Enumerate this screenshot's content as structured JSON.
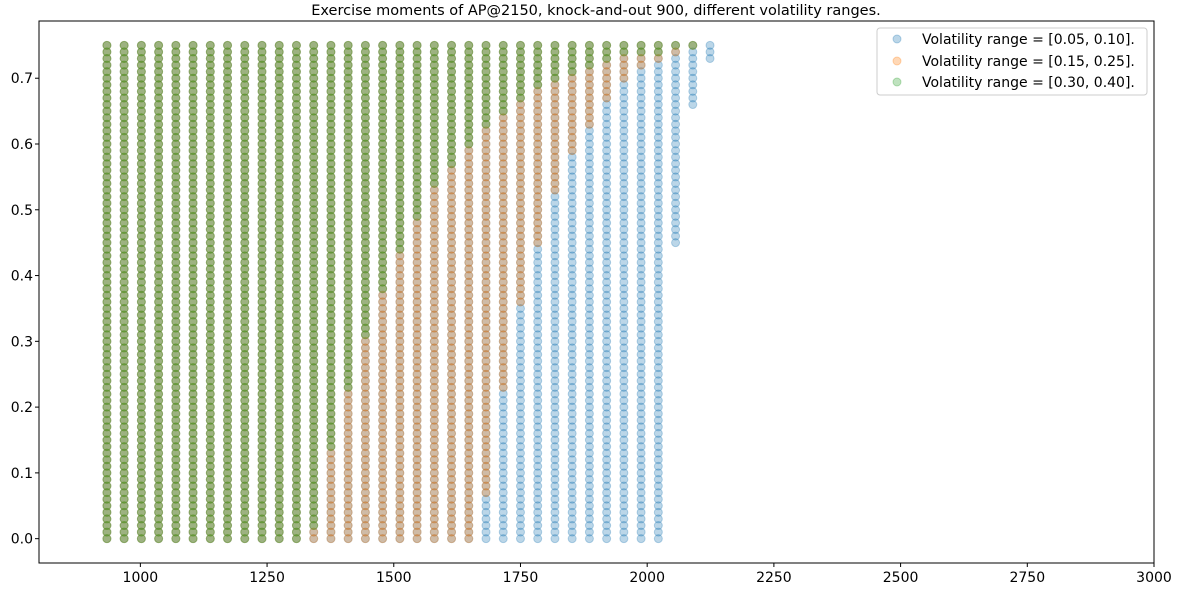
{
  "chart_data": {
    "type": "scatter",
    "title": "Exercise moments of AP@2150, knock-and-out 900, different volatility ranges.",
    "xlabel": "",
    "ylabel": "",
    "xlim": [
      800,
      3000
    ],
    "ylim": [
      -0.037,
      0.787
    ],
    "xticks": [
      1000,
      1250,
      1500,
      1750,
      2000,
      2250,
      2500,
      2750,
      3000
    ],
    "xtick_labels": [
      "1000",
      "1250",
      "1500",
      "1750",
      "2000",
      "2250",
      "2500",
      "2750",
      "3000"
    ],
    "yticks": [
      0.0,
      0.1,
      0.2,
      0.3,
      0.4,
      0.5,
      0.6,
      0.7
    ],
    "ytick_labels": [
      "0.0",
      "0.1",
      "0.2",
      "0.3",
      "0.4",
      "0.5",
      "0.6",
      "0.7"
    ],
    "grid": false,
    "legend_position": "top-right",
    "t_min": 0.0,
    "t_max": 0.75,
    "t_step": 0.01,
    "x_positions": [
      934,
      968,
      1002,
      1036,
      1070,
      1104,
      1138,
      1172,
      1206,
      1240,
      1274,
      1308,
      1342,
      1376,
      1410,
      1444,
      1478,
      1512,
      1546,
      1580,
      1614,
      1648,
      1682,
      1716,
      1750,
      1784,
      1818,
      1852,
      1886,
      1920,
      1954,
      1988,
      2022,
      2056,
      2090,
      2124
    ],
    "series": [
      {
        "name": "Volatility range = [0.05, 0.10].",
        "color": "#1f77b4",
        "opacity": 0.3,
        "columns": [
          {
            "x": 934,
            "from": 0.0,
            "to": 0.75
          },
          {
            "x": 968,
            "from": 0.0,
            "to": 0.75
          },
          {
            "x": 1002,
            "from": 0.0,
            "to": 0.75
          },
          {
            "x": 1036,
            "from": 0.0,
            "to": 0.75
          },
          {
            "x": 1070,
            "from": 0.0,
            "to": 0.75
          },
          {
            "x": 1104,
            "from": 0.0,
            "to": 0.75
          },
          {
            "x": 1138,
            "from": 0.0,
            "to": 0.75
          },
          {
            "x": 1172,
            "from": 0.0,
            "to": 0.75
          },
          {
            "x": 1206,
            "from": 0.0,
            "to": 0.75
          },
          {
            "x": 1240,
            "from": 0.0,
            "to": 0.75
          },
          {
            "x": 1274,
            "from": 0.0,
            "to": 0.75
          },
          {
            "x": 1308,
            "from": 0.0,
            "to": 0.75
          },
          {
            "x": 1342,
            "from": 0.0,
            "to": 0.75
          },
          {
            "x": 1376,
            "from": 0.0,
            "to": 0.75
          },
          {
            "x": 1410,
            "from": 0.0,
            "to": 0.75
          },
          {
            "x": 1444,
            "from": 0.0,
            "to": 0.75
          },
          {
            "x": 1478,
            "from": 0.0,
            "to": 0.75
          },
          {
            "x": 1512,
            "from": 0.0,
            "to": 0.75
          },
          {
            "x": 1546,
            "from": 0.0,
            "to": 0.75
          },
          {
            "x": 1580,
            "from": 0.0,
            "to": 0.75
          },
          {
            "x": 1614,
            "from": 0.0,
            "to": 0.75
          },
          {
            "x": 1648,
            "from": 0.0,
            "to": 0.75
          },
          {
            "x": 1682,
            "from": 0.0,
            "to": 0.75
          },
          {
            "x": 1716,
            "from": 0.0,
            "to": 0.75
          },
          {
            "x": 1750,
            "from": 0.0,
            "to": 0.75
          },
          {
            "x": 1784,
            "from": 0.0,
            "to": 0.75
          },
          {
            "x": 1818,
            "from": 0.0,
            "to": 0.75
          },
          {
            "x": 1852,
            "from": 0.0,
            "to": 0.75
          },
          {
            "x": 1886,
            "from": 0.0,
            "to": 0.75
          },
          {
            "x": 1920,
            "from": 0.0,
            "to": 0.75
          },
          {
            "x": 1954,
            "from": 0.0,
            "to": 0.75
          },
          {
            "x": 1988,
            "from": 0.0,
            "to": 0.75
          },
          {
            "x": 2022,
            "from": 0.0,
            "to": 0.75
          },
          {
            "x": 2056,
            "from": 0.45,
            "to": 0.75
          },
          {
            "x": 2090,
            "from": 0.66,
            "to": 0.75
          },
          {
            "x": 2124,
            "from": 0.73,
            "to": 0.75
          }
        ]
      },
      {
        "name": "Volatility range = [0.15, 0.25].",
        "color": "#ff7f0e",
        "opacity": 0.3,
        "columns": [
          {
            "x": 934,
            "from": 0.0,
            "to": 0.75
          },
          {
            "x": 968,
            "from": 0.0,
            "to": 0.75
          },
          {
            "x": 1002,
            "from": 0.0,
            "to": 0.75
          },
          {
            "x": 1036,
            "from": 0.0,
            "to": 0.75
          },
          {
            "x": 1070,
            "from": 0.0,
            "to": 0.75
          },
          {
            "x": 1104,
            "from": 0.0,
            "to": 0.75
          },
          {
            "x": 1138,
            "from": 0.0,
            "to": 0.75
          },
          {
            "x": 1172,
            "from": 0.0,
            "to": 0.75
          },
          {
            "x": 1206,
            "from": 0.0,
            "to": 0.75
          },
          {
            "x": 1240,
            "from": 0.0,
            "to": 0.75
          },
          {
            "x": 1274,
            "from": 0.0,
            "to": 0.75
          },
          {
            "x": 1308,
            "from": 0.0,
            "to": 0.75
          },
          {
            "x": 1342,
            "from": 0.0,
            "to": 0.75
          },
          {
            "x": 1376,
            "from": 0.0,
            "to": 0.75
          },
          {
            "x": 1410,
            "from": 0.0,
            "to": 0.75
          },
          {
            "x": 1444,
            "from": 0.0,
            "to": 0.75
          },
          {
            "x": 1478,
            "from": 0.0,
            "to": 0.75
          },
          {
            "x": 1512,
            "from": 0.0,
            "to": 0.75
          },
          {
            "x": 1546,
            "from": 0.0,
            "to": 0.75
          },
          {
            "x": 1580,
            "from": 0.0,
            "to": 0.75
          },
          {
            "x": 1614,
            "from": 0.0,
            "to": 0.75
          },
          {
            "x": 1648,
            "from": 0.0,
            "to": 0.75
          },
          {
            "x": 1682,
            "from": 0.07,
            "to": 0.75
          },
          {
            "x": 1716,
            "from": 0.23,
            "to": 0.75
          },
          {
            "x": 1750,
            "from": 0.36,
            "to": 0.75
          },
          {
            "x": 1784,
            "from": 0.45,
            "to": 0.75
          },
          {
            "x": 1818,
            "from": 0.53,
            "to": 0.75
          },
          {
            "x": 1852,
            "from": 0.59,
            "to": 0.75
          },
          {
            "x": 1886,
            "from": 0.63,
            "to": 0.75
          },
          {
            "x": 1920,
            "from": 0.67,
            "to": 0.75
          },
          {
            "x": 1954,
            "from": 0.7,
            "to": 0.75
          },
          {
            "x": 1988,
            "from": 0.72,
            "to": 0.75
          },
          {
            "x": 2022,
            "from": 0.73,
            "to": 0.75
          },
          {
            "x": 2056,
            "from": 0.74,
            "to": 0.75
          },
          {
            "x": 2090,
            "from": 0.75,
            "to": 0.75
          }
        ]
      },
      {
        "name": "Volatility range = [0.30, 0.40].",
        "color": "#2ca02c",
        "opacity": 0.3,
        "columns": [
          {
            "x": 934,
            "from": 0.0,
            "to": 0.75
          },
          {
            "x": 968,
            "from": 0.0,
            "to": 0.75
          },
          {
            "x": 1002,
            "from": 0.0,
            "to": 0.75
          },
          {
            "x": 1036,
            "from": 0.0,
            "to": 0.75
          },
          {
            "x": 1070,
            "from": 0.0,
            "to": 0.75
          },
          {
            "x": 1104,
            "from": 0.0,
            "to": 0.75
          },
          {
            "x": 1138,
            "from": 0.0,
            "to": 0.75
          },
          {
            "x": 1172,
            "from": 0.0,
            "to": 0.75
          },
          {
            "x": 1206,
            "from": 0.0,
            "to": 0.75
          },
          {
            "x": 1240,
            "from": 0.0,
            "to": 0.75
          },
          {
            "x": 1274,
            "from": 0.0,
            "to": 0.75
          },
          {
            "x": 1308,
            "from": 0.0,
            "to": 0.75
          },
          {
            "x": 1342,
            "from": 0.02,
            "to": 0.75
          },
          {
            "x": 1376,
            "from": 0.14,
            "to": 0.75
          },
          {
            "x": 1410,
            "from": 0.23,
            "to": 0.75
          },
          {
            "x": 1444,
            "from": 0.31,
            "to": 0.75
          },
          {
            "x": 1478,
            "from": 0.38,
            "to": 0.75
          },
          {
            "x": 1512,
            "from": 0.44,
            "to": 0.75
          },
          {
            "x": 1546,
            "from": 0.49,
            "to": 0.75
          },
          {
            "x": 1580,
            "from": 0.54,
            "to": 0.75
          },
          {
            "x": 1614,
            "from": 0.57,
            "to": 0.75
          },
          {
            "x": 1648,
            "from": 0.6,
            "to": 0.75
          },
          {
            "x": 1682,
            "from": 0.63,
            "to": 0.75
          },
          {
            "x": 1716,
            "from": 0.65,
            "to": 0.75
          },
          {
            "x": 1750,
            "from": 0.67,
            "to": 0.75
          },
          {
            "x": 1784,
            "from": 0.69,
            "to": 0.75
          },
          {
            "x": 1818,
            "from": 0.7,
            "to": 0.75
          },
          {
            "x": 1852,
            "from": 0.71,
            "to": 0.75
          },
          {
            "x": 1886,
            "from": 0.72,
            "to": 0.75
          },
          {
            "x": 1920,
            "from": 0.73,
            "to": 0.75
          },
          {
            "x": 1954,
            "from": 0.74,
            "to": 0.75
          },
          {
            "x": 1988,
            "from": 0.74,
            "to": 0.75
          },
          {
            "x": 2022,
            "from": 0.74,
            "to": 0.75
          },
          {
            "x": 2056,
            "from": 0.75,
            "to": 0.75
          },
          {
            "x": 2090,
            "from": 0.75,
            "to": 0.75
          }
        ]
      }
    ]
  }
}
